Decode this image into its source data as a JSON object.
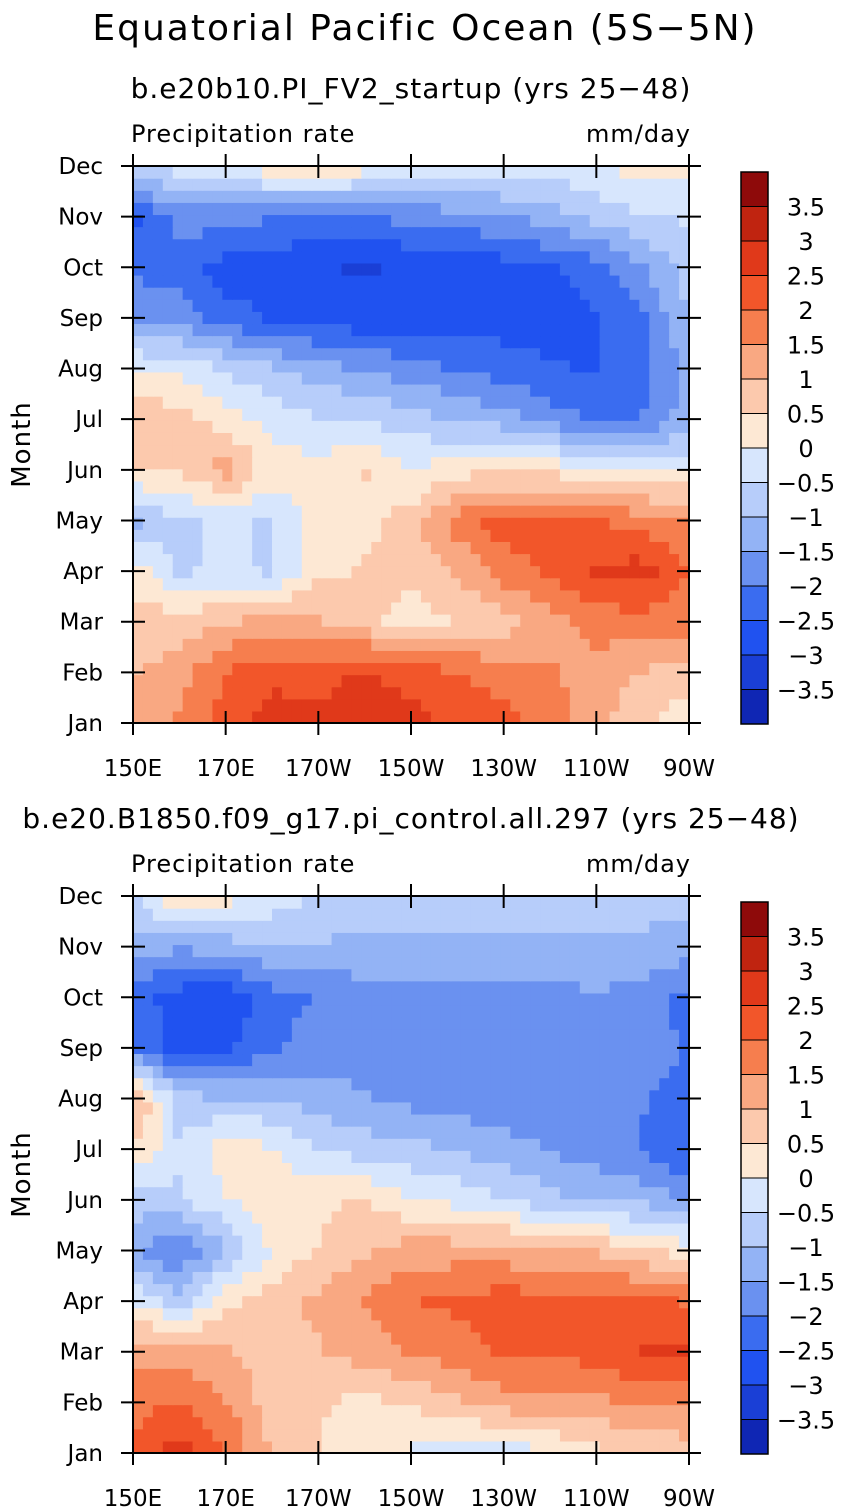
{
  "title": "Equatorial Pacific Ocean (5S−5N)",
  "colors": {
    "-4.0": "#0a0a8c",
    "-3.5": "#0f26b4",
    "-3.0": "#1a3fd6",
    "-2.5": "#2052f0",
    "-2.0": "#3a6cf0",
    "-1.5": "#6a91f0",
    "-1.0": "#93b3f5",
    "-0.5": "#b7cdfa",
    "0.0": "#d7e6fd",
    "0.5": "#fde8d4",
    "1.0": "#fcc9ad",
    "1.5": "#f9a882",
    "2.0": "#f67e4e",
    "2.5": "#f2562a",
    "3.0": "#e0391a",
    "3.5": "#c02410",
    "4.0": "#8e0a0a"
  },
  "chart_data": [
    {
      "type": "heatmap",
      "subtitle": "b.e20b10.PI_FV2_startup (yrs 25−48)",
      "left_label": "Precipitation rate",
      "right_label": "mm/day",
      "ylabel": "Month",
      "x_ticks": [
        "150E",
        "170E",
        "170W",
        "150W",
        "130W",
        "110W",
        "90W"
      ],
      "y_ticks": [
        "Jan",
        "Feb",
        "Mar",
        "Apr",
        "May",
        "Jun",
        "Jul",
        "Aug",
        "Sep",
        "Oct",
        "Nov",
        "Dec"
      ],
      "xlim": [
        150,
        270
      ],
      "ylim": [
        1,
        12
      ],
      "colorbar_labels": [
        "3.5",
        "3",
        "2.5",
        "2",
        "1.5",
        "1",
        "0.5",
        "0",
        "−0.5",
        "−1",
        "−1.5",
        "−2",
        "−2.5",
        "−3",
        "−3.5"
      ],
      "x": [
        150,
        160,
        170,
        180,
        190,
        200,
        210,
        220,
        230,
        240,
        250,
        260,
        270
      ],
      "z": [
        [
          1.5,
          1.8,
          2.5,
          3.0,
          3.0,
          3.2,
          3.0,
          2.5,
          2.5,
          2.0,
          1.5,
          0.8,
          0.4
        ],
        [
          1.2,
          1.5,
          2.3,
          2.6,
          2.5,
          2.8,
          2.5,
          2.3,
          2.0,
          1.8,
          1.5,
          1.2,
          1.0
        ],
        [
          1.0,
          1.0,
          1.2,
          1.5,
          1.3,
          1.0,
          0.4,
          0.8,
          1.0,
          1.5,
          2.0,
          2.0,
          2.0
        ],
        [
          0.6,
          -0.3,
          -0.2,
          -0.3,
          0.6,
          0.8,
          1.0,
          1.3,
          2.0,
          2.3,
          2.8,
          3.0,
          2.2
        ],
        [
          -1.0,
          -0.3,
          -0.2,
          -0.3,
          0.5,
          0.6,
          1.0,
          2.0,
          2.5,
          2.5,
          2.3,
          2.0,
          1.8
        ],
        [
          0.8,
          0.8,
          1.5,
          0.5,
          0.4,
          0.8,
          0.2,
          0.6,
          0.6,
          0.6,
          0.4,
          0.3,
          0.2
        ],
        [
          1.2,
          1.0,
          0.5,
          0.1,
          -0.2,
          -0.3,
          -0.5,
          -0.8,
          -1.0,
          -1.5,
          -1.8,
          -1.7,
          -1.0
        ],
        [
          0.3,
          0.1,
          -0.3,
          -0.7,
          -1.0,
          -1.3,
          -1.5,
          -1.8,
          -2.0,
          -2.2,
          -2.3,
          -2.0,
          -1.0
        ],
        [
          -1.5,
          -1.5,
          -2.0,
          -2.3,
          -2.5,
          -2.6,
          -2.5,
          -2.5,
          -2.5,
          -2.5,
          -2.3,
          -1.8,
          -0.8
        ],
        [
          -1.8,
          -2.0,
          -2.5,
          -2.6,
          -2.7,
          -2.8,
          -2.7,
          -2.6,
          -2.5,
          -2.3,
          -2.0,
          -1.3,
          -0.5
        ],
        [
          -2.5,
          -1.5,
          -1.6,
          -1.7,
          -1.8,
          -1.8,
          -1.6,
          -1.5,
          -1.3,
          -1.0,
          -0.6,
          -0.3,
          -0.2
        ],
        [
          -0.3,
          0.0,
          0.3,
          0.6,
          0.8,
          0.5,
          0.3,
          0.2,
          0.1,
          0.0,
          0.2,
          0.5,
          0.4
        ]
      ]
    },
    {
      "type": "heatmap",
      "subtitle": "b.e20.B1850.f09_g17.pi_control.all.297 (yrs 25−48)",
      "left_label": "Precipitation rate",
      "right_label": "mm/day",
      "ylabel": "Month",
      "x_ticks": [
        "150E",
        "170E",
        "170W",
        "150W",
        "130W",
        "110W",
        "90W"
      ],
      "y_ticks": [
        "Jan",
        "Feb",
        "Mar",
        "Apr",
        "May",
        "Jun",
        "Jul",
        "Aug",
        "Sep",
        "Oct",
        "Nov",
        "Dec"
      ],
      "xlim": [
        150,
        270
      ],
      "ylim": [
        1,
        12
      ],
      "colorbar_labels": [
        "3.5",
        "3",
        "2.5",
        "2",
        "1.5",
        "1",
        "0.5",
        "0",
        "−0.5",
        "−1",
        "−1.5",
        "−2",
        "−2.5",
        "−3",
        "−3.5"
      ],
      "x": [
        150,
        160,
        170,
        180,
        190,
        200,
        210,
        220,
        230,
        240,
        250,
        260,
        270
      ],
      "z": [
        [
          2.5,
          3.0,
          2.3,
          1.2,
          0.8,
          0.4,
          0.2,
          -0.2,
          -0.1,
          0.2,
          0.6,
          0.8,
          1.0
        ],
        [
          2.0,
          2.3,
          1.8,
          1.0,
          0.8,
          0.6,
          0.8,
          1.2,
          1.5,
          1.5,
          1.6,
          1.8,
          1.8
        ],
        [
          1.6,
          1.5,
          1.3,
          1.0,
          1.2,
          1.5,
          1.8,
          2.0,
          2.3,
          2.3,
          2.5,
          2.8,
          2.8
        ],
        [
          0.3,
          -0.5,
          0.6,
          1.0,
          1.4,
          1.8,
          2.2,
          2.4,
          2.5,
          2.5,
          2.5,
          2.5,
          2.2
        ],
        [
          -1.2,
          -1.8,
          -0.8,
          0.3,
          0.8,
          1.2,
          1.5,
          1.5,
          1.5,
          1.2,
          1.2,
          0.8,
          0.5
        ],
        [
          -0.5,
          -0.3,
          0.2,
          0.6,
          0.6,
          0.8,
          0.3,
          0.1,
          -0.2,
          -0.6,
          -0.8,
          -0.9,
          -1.3
        ],
        [
          0.8,
          -0.2,
          0.6,
          0.3,
          -0.2,
          -0.5,
          -0.6,
          -0.8,
          -1.0,
          -1.3,
          -1.5,
          -1.8,
          -2.3
        ],
        [
          1.5,
          -0.6,
          -0.7,
          -0.7,
          -1.0,
          -1.2,
          -1.4,
          -1.5,
          -1.6,
          -1.6,
          -1.7,
          -1.7,
          -2.0
        ],
        [
          -1.8,
          -2.5,
          -2.3,
          -1.8,
          -1.5,
          -1.5,
          -1.5,
          -1.5,
          -1.5,
          -1.5,
          -1.5,
          -1.5,
          -1.8
        ],
        [
          -2.0,
          -2.5,
          -2.7,
          -2.0,
          -1.7,
          -1.5,
          -1.5,
          -1.5,
          -1.5,
          -1.5,
          -1.3,
          -1.5,
          -2.0
        ],
        [
          -1.0,
          -1.2,
          -1.0,
          -0.8,
          -0.8,
          -0.9,
          -0.9,
          -0.8,
          -0.8,
          -0.8,
          -0.8,
          -0.9,
          -1.0
        ],
        [
          -0.3,
          1.0,
          0.5,
          0.1,
          -0.3,
          -0.5,
          -0.5,
          -0.5,
          -0.5,
          -0.5,
          -0.5,
          -0.5,
          -0.5
        ]
      ]
    }
  ]
}
